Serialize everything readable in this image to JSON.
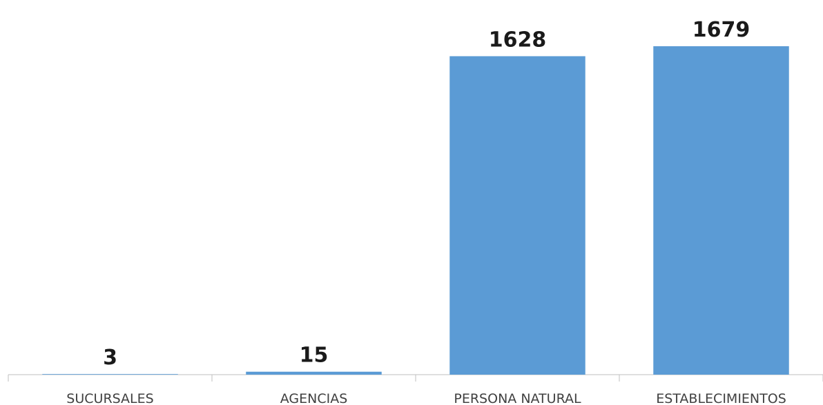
{
  "chart_data": {
    "type": "bar",
    "categories": [
      "SUCURSALES",
      "AGENCIAS",
      "PERSONA NATURAL",
      "ESTABLECIMIENTOS"
    ],
    "values": [
      3,
      15,
      1628,
      1679
    ],
    "color": "#5b9bd5"
  }
}
